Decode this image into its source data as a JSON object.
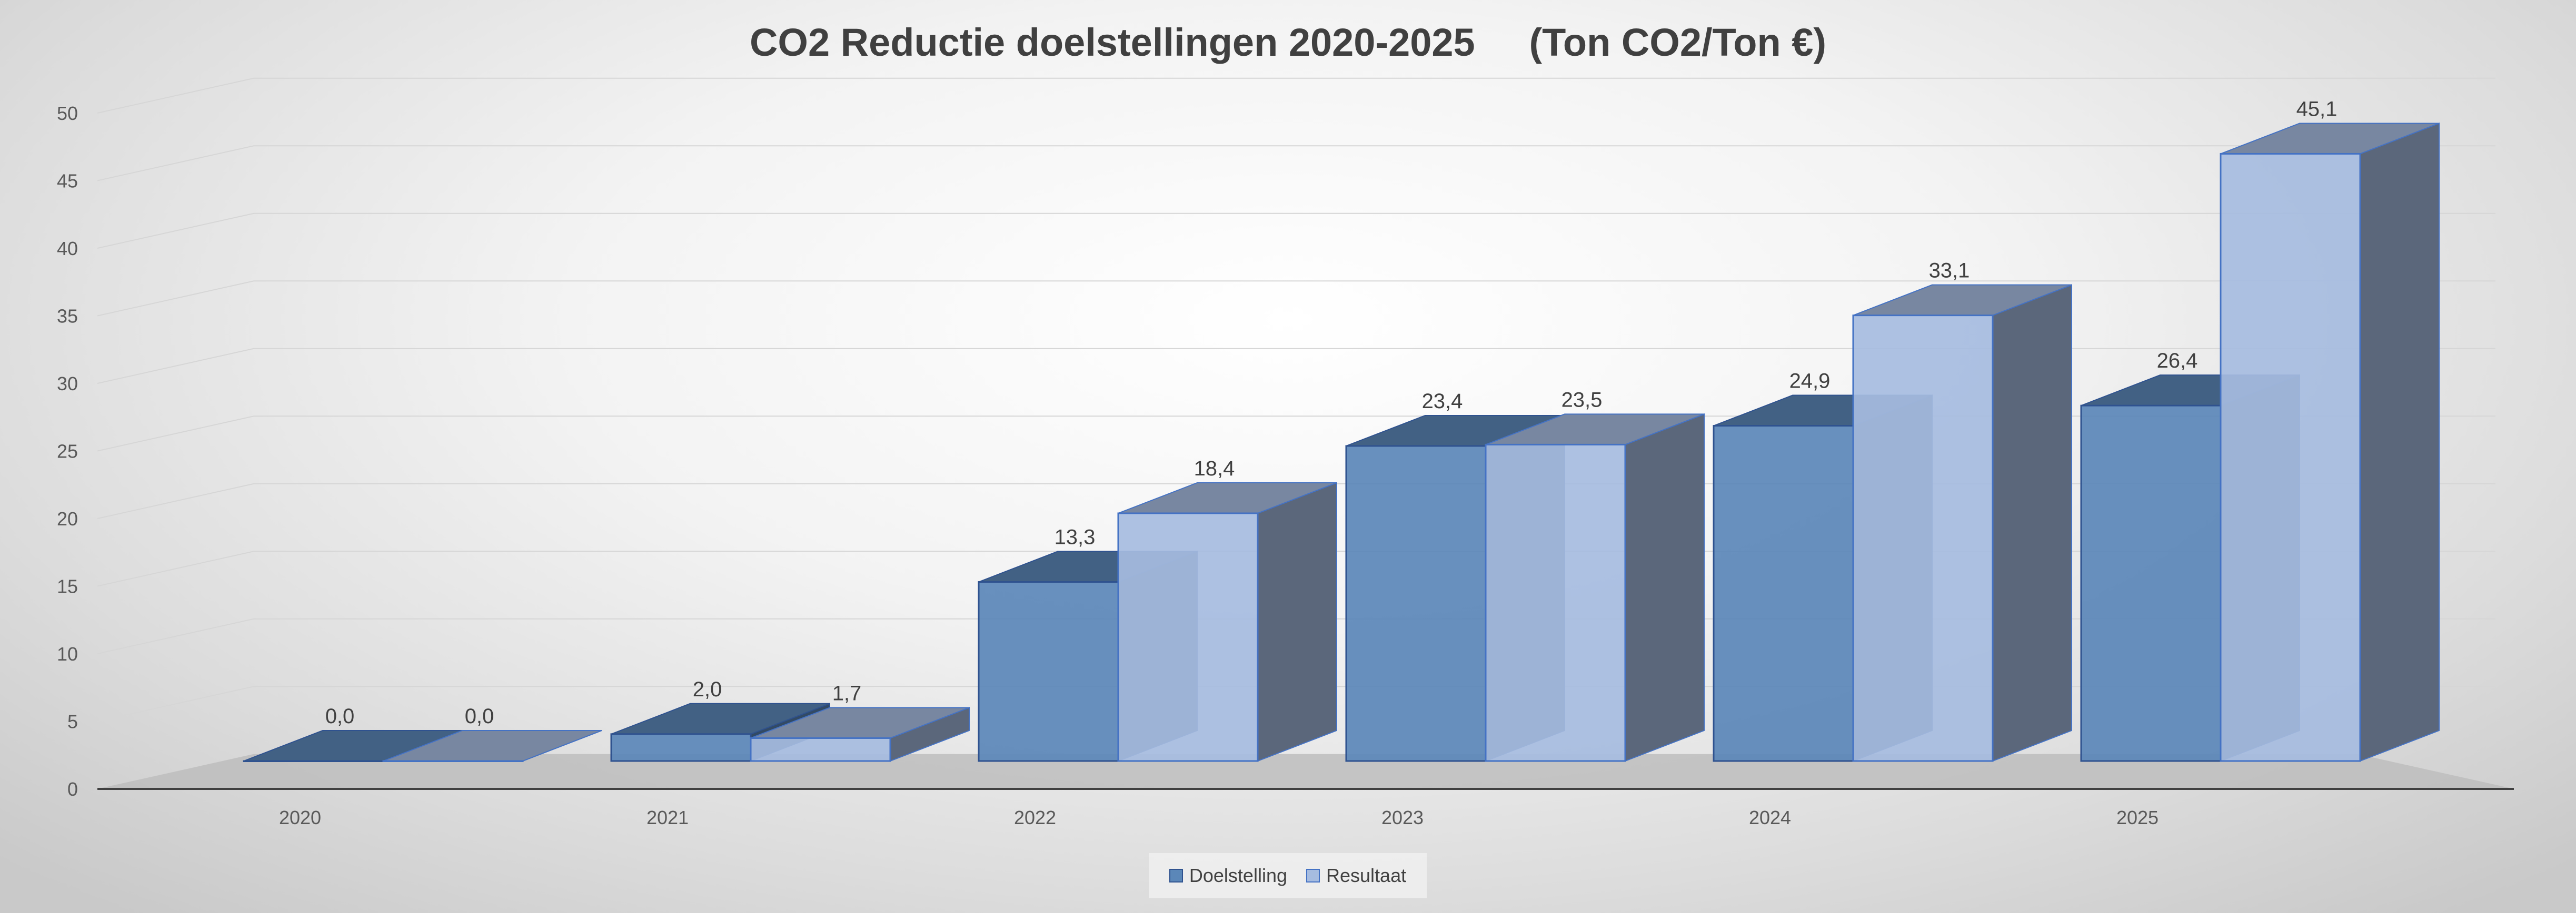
{
  "chart_data": {
    "type": "bar",
    "title": "CO2 Reductie doelstellingen 2020-2025     (Ton CO2/Ton €)",
    "categories": [
      "2020",
      "2021",
      "2022",
      "2023",
      "2024",
      "2025"
    ],
    "series": [
      {
        "name": "Doelstelling",
        "values": [
          0.0,
          2.0,
          13.3,
          23.4,
          24.9,
          26.4
        ],
        "labels": [
          "0,0",
          "2,0",
          "13,3",
          "23,4",
          "24,9",
          "26,4"
        ]
      },
      {
        "name": "Resultaat",
        "values": [
          0.0,
          1.7,
          18.4,
          23.5,
          33.1,
          45.1
        ],
        "labels": [
          "0,0",
          "1,7",
          "18,4",
          "23,5",
          "33,1",
          "45,1"
        ]
      }
    ],
    "yticks": [
      "0",
      "5",
      "10",
      "15",
      "20",
      "25",
      "30",
      "35",
      "40",
      "45",
      "50"
    ],
    "ylim": [
      0,
      50
    ],
    "xlabel": "",
    "ylabel": "",
    "legend_position": "bottom",
    "colors": {
      "Doelstelling": "#5b87b8",
      "Doelstelling_edge": "#2f528f",
      "Resultaat": "#a6bce0",
      "Resultaat_edge": "#4472c4",
      "floor": "#bdbdbd",
      "axis": "#404040"
    }
  }
}
